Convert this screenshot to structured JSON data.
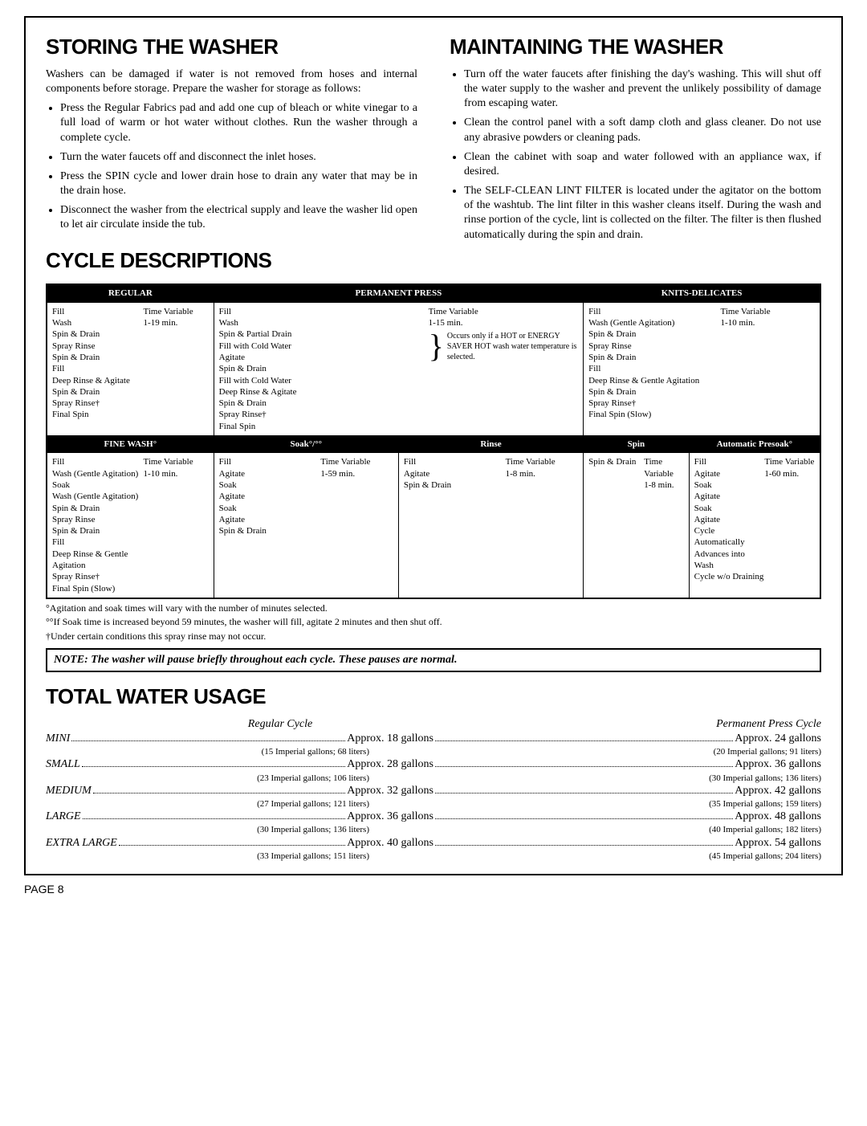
{
  "storing": {
    "title": "STORING THE WASHER",
    "intro": "Washers can be damaged if water is not removed from hoses and internal components before storage. Prepare the washer for storage as follows:",
    "items": [
      "Press the Regular Fabrics pad and add one cup of bleach or white vinegar to a full load of warm or hot water without clothes. Run the washer through a complete cycle.",
      "Turn the water faucets off and disconnect the inlet hoses.",
      "Press the SPIN cycle and lower drain hose to drain any water that may be in the drain hose.",
      "Disconnect the washer from the electrical supply and leave the washer lid open to let air circulate inside the tub."
    ]
  },
  "maintaining": {
    "title": "MAINTAINING THE WASHER",
    "items": [
      "Turn off the water faucets after finishing the day's washing. This will shut off the water supply to the washer and prevent the unlikely possibility of damage from escaping water.",
      "Clean the control panel with a soft damp cloth and glass cleaner. Do not use any abrasive powders or cleaning pads.",
      "Clean the cabinet with soap and water followed with an appliance wax, if desired.",
      "The SELF-CLEAN LINT FILTER is located under the agitator on the bottom of the washtub. The lint filter in this washer cleans itself. During the wash and rinse portion of the cycle, lint is collected on the filter. The filter is then flushed automatically during the spin and drain."
    ]
  },
  "cycleTitle": "CYCLE DESCRIPTIONS",
  "cycles": {
    "row1": [
      {
        "name": "REGULAR",
        "steps": "Fill\nWash\nSpin & Drain\nSpray Rinse\nSpin & Drain\nFill\nDeep Rinse & Agitate\nSpin & Drain\nSpray Rinse†\nFinal Spin",
        "time": "Time Variable\n1-19 min."
      },
      {
        "name": "PERMANENT PRESS",
        "steps": "Fill\nWash\nSpin & Partial Drain\nFill with Cold Water\nAgitate\nSpin & Drain\nFill with Cold Water\nDeep Rinse & Agitate\nSpin & Drain\nSpray Rinse†\nFinal Spin",
        "time": "Time Variable\n1-15 min.",
        "note": "Occurs only if a HOT or ENERGY SAVER HOT wash water temperature is selected."
      },
      {
        "name": "KNITS-DELICATES",
        "steps": "Fill\nWash (Gentle Agitation)\nSpin & Drain\nSpray Rinse\nSpin & Drain\nFill\nDeep Rinse & Gentle Agitation\nSpin & Drain\nSpray Rinse†\nFinal Spin (Slow)",
        "time": "Time Variable\n1-10 min."
      }
    ],
    "row2": [
      {
        "name": "FINE WASH°",
        "steps": "Fill\nWash (Gentle Agitation)\nSoak\nWash (Gentle Agitation)\nSpin & Drain\nSpray Rinse\nSpin & Drain\nFill\nDeep Rinse & Gentle Agitation\nSpray Rinse†\nFinal Spin (Slow)",
        "time": "Time Variable\n1-10 min."
      },
      {
        "name": "Soak°/°°",
        "steps": "Fill\nAgitate\nSoak\nAgitate\nSoak\nAgitate\nSpin & Drain",
        "time": "Time Variable\n1-59 min."
      },
      {
        "name": "Rinse",
        "steps": "Fill\nAgitate\nSpin & Drain",
        "time": "Time Variable\n1-8 min."
      },
      {
        "name": "Spin",
        "steps": "Spin & Drain",
        "time": "Time Variable\n1-8 min."
      },
      {
        "name": "Automatic Presoak°",
        "steps": "Fill\nAgitate\nSoak\nAgitate\nSoak\nAgitate\nCycle Automatically\nAdvances into Wash\nCycle w/o Draining",
        "time": "Time Variable\n1-60 min."
      }
    ]
  },
  "footnotes": [
    "°Agitation and soak times will vary with the number of minutes selected.",
    "°°If Soak time is increased beyond 59 minutes, the washer will fill, agitate 2 minutes and then shut off.",
    "†Under certain conditions this spray rinse may not occur."
  ],
  "noteBox": "NOTE: The washer will pause briefly throughout each cycle. These pauses are normal.",
  "waterTitle": "TOTAL WATER USAGE",
  "waterHeaders": [
    "Regular Cycle",
    "Permanent Press Cycle"
  ],
  "waterRows": [
    {
      "label": "MINI",
      "reg": "Approx. 18 gallons",
      "regSub": "(15 Imperial gallons; 68 liters)",
      "pp": "Approx. 24 gallons",
      "ppSub": "(20 Imperial gallons; 91 liters)"
    },
    {
      "label": "SMALL",
      "reg": "Approx. 28 gallons",
      "regSub": "(23 Imperial gallons; 106 liters)",
      "pp": "Approx. 36 gallons",
      "ppSub": "(30 Imperial gallons; 136 liters)"
    },
    {
      "label": "MEDIUM",
      "reg": "Approx. 32 gallons",
      "regSub": "(27 Imperial gallons; 121 liters)",
      "pp": "Approx. 42 gallons",
      "ppSub": "(35 Imperial gallons; 159 liters)"
    },
    {
      "label": "LARGE",
      "reg": "Approx. 36 gallons",
      "regSub": "(30 Imperial gallons; 136 liters)",
      "pp": "Approx. 48 gallons",
      "ppSub": "(40 Imperial gallons; 182 liters)"
    },
    {
      "label": "EXTRA LARGE",
      "reg": "Approx. 40 gallons",
      "regSub": "(33 Imperial gallons; 151 liters)",
      "pp": "Approx. 54 gallons",
      "ppSub": "(45 Imperial gallons; 204 liters)"
    }
  ],
  "pageNum": "PAGE 8"
}
